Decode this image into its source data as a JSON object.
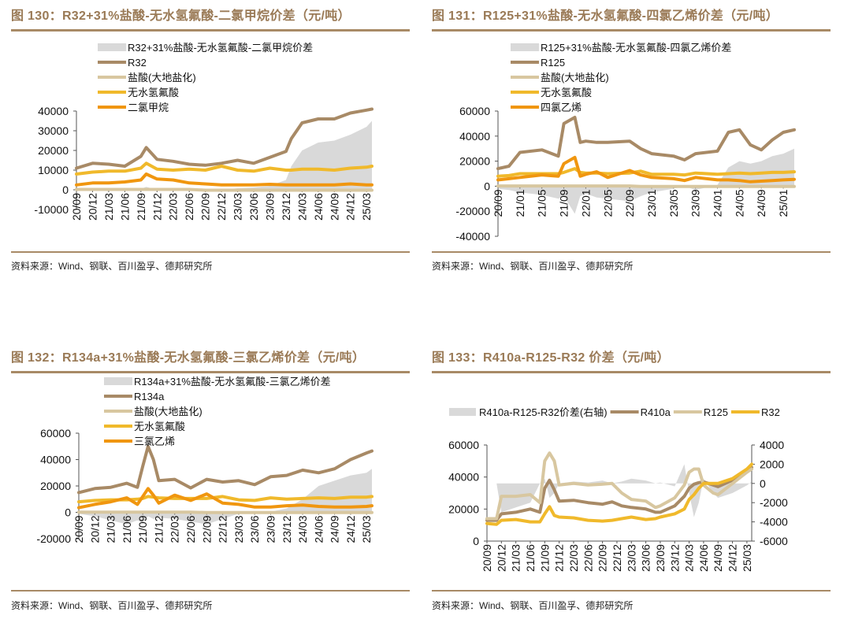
{
  "colors": {
    "title": "#9a7a56",
    "spread_fill": "#d9d9d9",
    "main_product": "#a88a66",
    "hcl": "#d8c7a0",
    "hf": "#f0b92b",
    "feedstock": "#f0960f"
  },
  "source_text": "资料来源：Wind、钢联、百川盈孚、德邦研究所",
  "chart_data": [
    {
      "id": "fig130",
      "type": "line",
      "title": "图 130：R32+31%盐酸-无水氢氟酸-二氯甲烷价差（元/吨）",
      "source": "资料来源：Wind、钢联、百川盈孚、德邦研究所",
      "xlabel": "",
      "ylabel": "",
      "ylim": [
        -10000,
        40000
      ],
      "yticks": [
        "40000",
        "30000",
        "20000",
        "10000",
        "0",
        "-10000"
      ],
      "ytick_values": [
        40000,
        30000,
        20000,
        10000,
        0,
        -10000
      ],
      "xticks": [
        "20/09",
        "20/12",
        "21/03",
        "21/06",
        "21/09",
        "21/12",
        "22/03",
        "22/06",
        "22/09",
        "22/12",
        "23/03",
        "23/06",
        "23/09",
        "23/12",
        "24/03",
        "24/06",
        "24/09",
        "24/12",
        "25/03"
      ],
      "x": [
        "20/09",
        "20/12",
        "21/03",
        "21/06",
        "21/09",
        "21/10",
        "21/12",
        "22/03",
        "22/06",
        "22/09",
        "22/12",
        "23/03",
        "23/06",
        "23/09",
        "23/12",
        "24/01",
        "24/03",
        "24/06",
        "24/09",
        "24/12",
        "25/03",
        "25/04"
      ],
      "legend": "top-center",
      "grid": false,
      "series": [
        {
          "name": "R32+31%盐酸-无水氢氟酸-二氯甲烷价差",
          "kind": "area",
          "color_key": "spread_fill",
          "values": [
            -500,
            500,
            -200,
            -300,
            500,
            1500,
            0,
            -300,
            -200,
            -500,
            0,
            800,
            1200,
            2000,
            5000,
            12000,
            20000,
            24000,
            25000,
            28000,
            32000,
            35000
          ]
        },
        {
          "name": "R32",
          "kind": "line",
          "color_key": "main_product",
          "values": [
            11000,
            13500,
            13000,
            12000,
            17000,
            21500,
            15500,
            14500,
            13000,
            12500,
            13500,
            15000,
            13500,
            16500,
            19500,
            26000,
            34000,
            36000,
            36000,
            39000,
            40500,
            41000
          ]
        },
        {
          "name": "盐酸(大地盐化)",
          "kind": "line",
          "color_key": "hcl",
          "values": [
            200,
            200,
            200,
            200,
            200,
            200,
            200,
            200,
            200,
            -200,
            -200,
            -200,
            -200,
            -200,
            -200,
            -200,
            -200,
            -200,
            -200,
            -200,
            -200,
            -200
          ]
        },
        {
          "name": "无水氢氟酸",
          "kind": "line",
          "color_key": "hf",
          "values": [
            8000,
            9000,
            9500,
            9500,
            11000,
            13500,
            10500,
            10000,
            10500,
            10000,
            12000,
            10000,
            9500,
            11000,
            10000,
            10000,
            10500,
            10500,
            10000,
            11000,
            11500,
            12000
          ]
        },
        {
          "name": "二氯甲烷",
          "kind": "line",
          "color_key": "feedstock",
          "values": [
            2500,
            3500,
            3500,
            4000,
            5000,
            8000,
            5500,
            5000,
            3500,
            3000,
            2500,
            2500,
            2500,
            2800,
            2500,
            2500,
            2500,
            2500,
            2500,
            3000,
            2500,
            2500
          ]
        }
      ]
    },
    {
      "id": "fig131",
      "type": "line",
      "title": "图 131：R125+31%盐酸-无水氢氟酸-四氯乙烯价差（元/吨）",
      "source": "资料来源：Wind、钢联、百川盈孚、德邦研究所",
      "xlabel": "",
      "ylabel": "",
      "ylim": [
        -40000,
        60000
      ],
      "yticks": [
        "60000",
        "40000",
        "20000",
        "0",
        "-20000",
        "-40000"
      ],
      "ytick_values": [
        60000,
        40000,
        20000,
        0,
        -20000,
        -40000
      ],
      "xticks": [
        "20/09",
        "21/01",
        "21/05",
        "21/09",
        "22/01",
        "22/05",
        "22/09",
        "23/01",
        "23/05",
        "23/09",
        "24/01",
        "24/05",
        "24/09",
        "25/01"
      ],
      "x": [
        "20/09",
        "20/11",
        "21/01",
        "21/05",
        "21/08",
        "21/09",
        "21/11",
        "21/12",
        "22/01",
        "22/03",
        "22/05",
        "22/09",
        "22/11",
        "23/01",
        "23/05",
        "23/07",
        "23/09",
        "24/01",
        "24/03",
        "24/05",
        "24/07",
        "24/09",
        "24/11",
        "25/01",
        "25/03"
      ],
      "legend": "top-center",
      "grid": false,
      "series": [
        {
          "name": "R125+31%盐酸-无水氢氟酸-四氯乙烯价差",
          "kind": "area",
          "color_key": "spread_fill",
          "values": [
            -2000,
            -3000,
            -5000,
            -7000,
            -10000,
            -8000,
            -22000,
            -8000,
            -6000,
            -9000,
            -10000,
            -12000,
            -8000,
            -5000,
            -2000,
            0,
            -3000,
            1000,
            15000,
            20000,
            18000,
            20000,
            24000,
            26000,
            30000
          ]
        },
        {
          "name": "R125",
          "kind": "line",
          "color_key": "main_product",
          "values": [
            14000,
            16000,
            27000,
            29000,
            24000,
            50000,
            55000,
            35000,
            36000,
            35000,
            35000,
            36000,
            30000,
            26000,
            24000,
            21000,
            26000,
            28000,
            43000,
            45000,
            33000,
            29000,
            37000,
            43000,
            45000
          ]
        },
        {
          "name": "盐酸(大地盐化)",
          "kind": "line",
          "color_key": "hcl",
          "values": [
            200,
            200,
            200,
            200,
            200,
            200,
            200,
            200,
            200,
            200,
            200,
            200,
            -200,
            -200,
            -200,
            -200,
            -200,
            -200,
            -200,
            -200,
            -200,
            -200,
            -200,
            -200,
            -200
          ]
        },
        {
          "name": "无水氢氟酸",
          "kind": "line",
          "color_key": "hf",
          "values": [
            8000,
            8500,
            10000,
            10000,
            10000,
            11000,
            14000,
            11000,
            10500,
            10500,
            10000,
            10500,
            12000,
            9500,
            9500,
            9000,
            10500,
            9500,
            10000,
            10500,
            10000,
            10500,
            11000,
            11000,
            11500
          ]
        },
        {
          "name": "四氯乙烯",
          "kind": "line",
          "color_key": "feedstock",
          "values": [
            5000,
            6000,
            7000,
            9000,
            8000,
            18000,
            23000,
            8000,
            9500,
            11500,
            7000,
            12500,
            9000,
            7000,
            6000,
            4500,
            7000,
            5000,
            5000,
            4500,
            3500,
            4000,
            4500,
            5000,
            5500
          ]
        }
      ]
    },
    {
      "id": "fig132",
      "type": "line",
      "title": "图 132：R134a+31%盐酸-无水氢氟酸-三氯乙烯价差（元/吨）",
      "source": "资料来源：Wind、钢联、百川盈孚、德邦研究所",
      "xlabel": "",
      "ylabel": "",
      "ylim": [
        -20000,
        60000
      ],
      "yticks": [
        "60000",
        "40000",
        "20000",
        "0",
        "-20000"
      ],
      "ytick_values": [
        60000,
        40000,
        20000,
        0,
        -20000
      ],
      "xticks": [
        "20/09",
        "20/12",
        "21/03",
        "21/06",
        "21/09",
        "21/12",
        "22/03",
        "22/06",
        "22/09",
        "22/12",
        "23/03",
        "23/06",
        "23/09",
        "23/12",
        "24/03",
        "24/06",
        "24/09",
        "24/12",
        "25/03"
      ],
      "x": [
        "20/09",
        "20/12",
        "21/03",
        "21/06",
        "21/08",
        "21/09",
        "21/10",
        "21/11",
        "21/12",
        "22/03",
        "22/06",
        "22/09",
        "22/12",
        "23/03",
        "23/06",
        "23/09",
        "23/12",
        "24/03",
        "24/06",
        "24/09",
        "24/12",
        "25/03",
        "25/04"
      ],
      "legend": "top-center",
      "grid": false,
      "series": [
        {
          "name": "R134a+31%盐酸-无水氢氟酸-三氯乙烯价差",
          "kind": "area",
          "color_key": "spread_fill",
          "values": [
            -1000,
            -3000,
            -6000,
            -9000,
            -6000,
            -8000,
            -3000,
            -5000,
            -4000,
            -5000,
            -7000,
            -9000,
            -5000,
            -1000,
            0,
            500,
            3000,
            10000,
            20000,
            24000,
            28000,
            30000,
            33000
          ]
        },
        {
          "name": "R134a",
          "kind": "line",
          "color_key": "main_product",
          "values": [
            15000,
            18000,
            19000,
            22000,
            19000,
            35000,
            50000,
            40000,
            24000,
            25000,
            18500,
            25000,
            23000,
            24000,
            21000,
            27000,
            28000,
            32000,
            30000,
            33000,
            40000,
            45000,
            46500
          ]
        },
        {
          "name": "盐酸(大地盐化)",
          "kind": "line",
          "color_key": "hcl",
          "values": [
            200,
            200,
            200,
            200,
            200,
            200,
            200,
            200,
            200,
            200,
            200,
            -200,
            -200,
            -200,
            -200,
            -200,
            -200,
            -200,
            -200,
            -200,
            -200,
            -200,
            -200
          ]
        },
        {
          "name": "无水氢氟酸",
          "kind": "line",
          "color_key": "hf",
          "values": [
            8000,
            9000,
            9500,
            9500,
            10000,
            10500,
            12000,
            11500,
            11000,
            10500,
            10500,
            10500,
            12000,
            9500,
            9000,
            11000,
            10000,
            10500,
            11000,
            10500,
            11500,
            11500,
            12000
          ]
        },
        {
          "name": "三氯乙烯",
          "kind": "line",
          "color_key": "feedstock",
          "values": [
            3500,
            6000,
            8000,
            11000,
            6000,
            12000,
            18000,
            13000,
            7000,
            13000,
            9000,
            14000,
            7000,
            6000,
            4000,
            4000,
            5000,
            5500,
            4500,
            4000,
            4000,
            4500,
            5000
          ]
        }
      ]
    },
    {
      "id": "fig133",
      "type": "line",
      "title": "图 133：R410a-R125-R32 价差（元/吨）",
      "source": "资料来源：Wind、钢联、百川盈孚、德邦研究所",
      "xlabel": "",
      "ylabel": "",
      "ylim": [
        0,
        60000
      ],
      "y2lim": [
        -6000,
        4000
      ],
      "yticks": [
        "60000",
        "40000",
        "20000",
        "0"
      ],
      "ytick_values": [
        60000,
        40000,
        20000,
        0
      ],
      "y2ticks": [
        "4000",
        "2000",
        "0",
        "-2000",
        "-4000",
        "-6000"
      ],
      "y2tick_values": [
        4000,
        2000,
        0,
        -2000,
        -4000,
        -6000
      ],
      "xticks": [
        "20/09",
        "20/12",
        "21/03",
        "21/06",
        "21/09",
        "21/12",
        "22/03",
        "22/06",
        "22/09",
        "22/12",
        "23/03",
        "23/06",
        "23/09",
        "23/12",
        "24/03",
        "24/06",
        "24/09",
        "24/12",
        "25/03"
      ],
      "x": [
        "20/09",
        "20/11",
        "20/12",
        "21/03",
        "21/06",
        "21/08",
        "21/09",
        "21/10",
        "21/11",
        "21/12",
        "22/03",
        "22/06",
        "22/09",
        "22/11",
        "23/01",
        "23/03",
        "23/06",
        "23/08",
        "23/09",
        "23/12",
        "24/02",
        "24/03",
        "24/04",
        "24/05",
        "24/06",
        "24/08",
        "24/09",
        "24/12",
        "25/03",
        "25/04"
      ],
      "legend": "top",
      "grid": false,
      "series": [
        {
          "name": "R410a-R125-R32价差(右轴)",
          "kind": "area",
          "axis": "right",
          "color_key": "spread_fill",
          "values": [
            0,
            0,
            -3000,
            -2500,
            -2000,
            0,
            500,
            -1500,
            -1000,
            0,
            200,
            100,
            300,
            0,
            200,
            500,
            300,
            0,
            100,
            -300,
            2000,
            -1000,
            -3500,
            -2000,
            500,
            -1000,
            -1500,
            -1000,
            -200,
            200
          ]
        },
        {
          "name": "R410a",
          "kind": "line",
          "axis": "left",
          "color_key": "main_product",
          "values": [
            13000,
            13000,
            17000,
            18000,
            20000,
            18000,
            33000,
            38000,
            32000,
            25000,
            25500,
            24000,
            23000,
            24500,
            22000,
            21000,
            20000,
            18000,
            18000,
            22000,
            28000,
            33000,
            35500,
            36500,
            37000,
            35000,
            34000,
            38000,
            44000,
            46000
          ]
        },
        {
          "name": "R125",
          "kind": "line",
          "axis": "left",
          "color_key": "hcl",
          "values": [
            14000,
            14000,
            28000,
            28000,
            29000,
            24000,
            50000,
            55000,
            50000,
            35000,
            36000,
            35000,
            35500,
            36000,
            30000,
            26000,
            25000,
            21000,
            22000,
            27000,
            35000,
            43000,
            45000,
            45000,
            35000,
            30000,
            29000,
            36000,
            43000,
            45000
          ]
        },
        {
          "name": "R32",
          "kind": "line",
          "axis": "left",
          "color_key": "hf",
          "values": [
            11000,
            10500,
            13000,
            13500,
            12000,
            12000,
            17000,
            21500,
            16000,
            15000,
            14500,
            13000,
            12500,
            13000,
            14000,
            15000,
            13500,
            14000,
            15000,
            17000,
            20000,
            26000,
            29000,
            33000,
            36000,
            36000,
            36000,
            39000,
            45000,
            48000
          ]
        }
      ]
    }
  ]
}
